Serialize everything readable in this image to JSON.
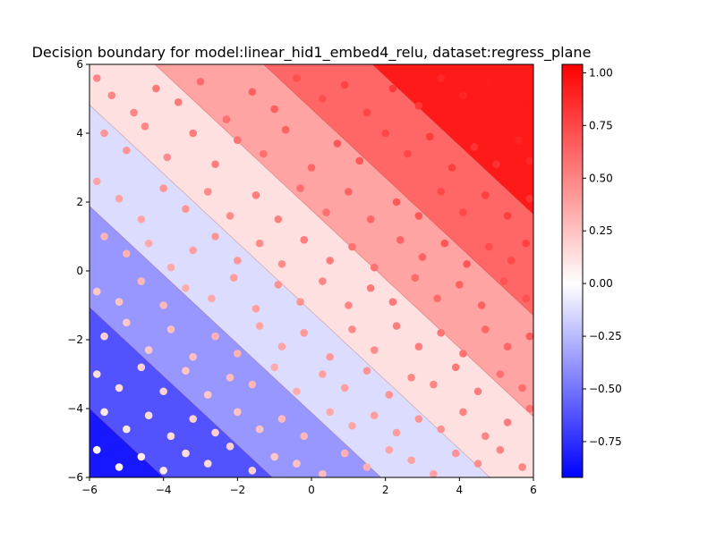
{
  "chart_data": {
    "type": "scatter",
    "title": "Decision boundary for model:linear_hid1_embed4_relu, dataset:regress_plane",
    "xlabel": "",
    "ylabel": "",
    "xlim": [
      -6,
      6
    ],
    "ylim": [
      -6,
      6
    ],
    "x_ticks": [
      -6,
      -4,
      -2,
      0,
      2,
      4,
      6
    ],
    "y_ticks": [
      -6,
      -4,
      -2,
      0,
      2,
      4,
      6
    ],
    "x_tick_labels": [
      "−6",
      "−4",
      "−2",
      "0",
      "2",
      "4",
      "6"
    ],
    "y_tick_labels": [
      "−6",
      "−4",
      "−2",
      "0",
      "2",
      "4",
      "6"
    ],
    "grid": false,
    "colormap": "bwr",
    "colorbar": {
      "vmin": -0.92,
      "vmax": 1.04,
      "ticks": [
        -0.75,
        -0.5,
        -0.25,
        0.0,
        0.25,
        0.5,
        0.75,
        1.0
      ],
      "tick_labels": [
        "−0.75",
        "−0.50",
        "−0.25",
        "0.00",
        "0.25",
        "0.50",
        "0.75",
        "1.00"
      ]
    },
    "contour_levels": [
      -0.75,
      -0.5,
      -0.25,
      0.0,
      0.25,
      0.5,
      0.75
    ],
    "model_surface": {
      "a": 0.085,
      "b": 0.085,
      "c": 0.1
    },
    "sample_value_rule": "(x + y + 12) / 24",
    "points": [
      [
        -5.8,
        5.6
      ],
      [
        -5.4,
        5.1
      ],
      [
        -4.8,
        4.6
      ],
      [
        -4.2,
        5.3
      ],
      [
        -3.6,
        4.9
      ],
      [
        -3.0,
        5.5
      ],
      [
        -2.3,
        4.4
      ],
      [
        -1.6,
        5.2
      ],
      [
        -1.0,
        4.7
      ],
      [
        -0.4,
        5.6
      ],
      [
        0.3,
        5.0
      ],
      [
        0.9,
        5.4
      ],
      [
        1.5,
        4.6
      ],
      [
        2.2,
        5.3
      ],
      [
        2.9,
        4.8
      ],
      [
        3.5,
        5.6
      ],
      [
        4.1,
        5.1
      ],
      [
        4.8,
        5.5
      ],
      [
        5.3,
        5.0
      ],
      [
        5.8,
        4.8
      ],
      [
        -5.6,
        4.0
      ],
      [
        -5.0,
        3.5
      ],
      [
        -4.5,
        4.2
      ],
      [
        -3.9,
        3.3
      ],
      [
        -3.2,
        4.0
      ],
      [
        -2.6,
        3.1
      ],
      [
        -2.0,
        3.8
      ],
      [
        -1.3,
        3.4
      ],
      [
        -0.7,
        4.1
      ],
      [
        0.0,
        3.0
      ],
      [
        0.7,
        3.7
      ],
      [
        1.3,
        3.2
      ],
      [
        2.0,
        4.0
      ],
      [
        2.6,
        3.4
      ],
      [
        3.2,
        3.9
      ],
      [
        3.8,
        3.0
      ],
      [
        4.4,
        3.6
      ],
      [
        5.0,
        3.1
      ],
      [
        5.6,
        3.8
      ],
      [
        5.9,
        3.2
      ],
      [
        -5.8,
        2.6
      ],
      [
        -5.2,
        2.1
      ],
      [
        -4.6,
        1.5
      ],
      [
        -4.0,
        2.4
      ],
      [
        -3.4,
        1.8
      ],
      [
        -2.8,
        2.3
      ],
      [
        -2.2,
        1.6
      ],
      [
        -1.5,
        2.2
      ],
      [
        -0.9,
        1.5
      ],
      [
        -0.3,
        2.4
      ],
      [
        0.4,
        1.7
      ],
      [
        1.0,
        2.3
      ],
      [
        1.6,
        1.5
      ],
      [
        2.3,
        2.0
      ],
      [
        2.9,
        1.6
      ],
      [
        3.5,
        2.3
      ],
      [
        4.1,
        1.7
      ],
      [
        4.7,
        2.2
      ],
      [
        5.3,
        1.6
      ],
      [
        5.9,
        2.1
      ],
      [
        -5.6,
        1.0
      ],
      [
        -5.0,
        0.5
      ],
      [
        -4.4,
        0.8
      ],
      [
        -3.8,
        0.1
      ],
      [
        -3.2,
        0.6
      ],
      [
        -2.6,
        1.0
      ],
      [
        -2.0,
        0.3
      ],
      [
        -1.4,
        0.8
      ],
      [
        -0.8,
        0.2
      ],
      [
        -0.2,
        0.9
      ],
      [
        0.5,
        0.3
      ],
      [
        1.1,
        0.7
      ],
      [
        1.7,
        0.1
      ],
      [
        2.4,
        0.9
      ],
      [
        3.0,
        0.4
      ],
      [
        3.6,
        0.8
      ],
      [
        4.2,
        0.2
      ],
      [
        4.8,
        0.7
      ],
      [
        5.4,
        0.3
      ],
      [
        5.8,
        0.8
      ],
      [
        -5.8,
        -0.6
      ],
      [
        -5.2,
        -0.9
      ],
      [
        -4.6,
        -0.3
      ],
      [
        -4.0,
        -1.0
      ],
      [
        -3.4,
        -0.5
      ],
      [
        -2.7,
        -0.8
      ],
      [
        -2.1,
        -0.2
      ],
      [
        -1.5,
        -1.1
      ],
      [
        -0.9,
        -0.4
      ],
      [
        -0.3,
        -0.9
      ],
      [
        0.3,
        -0.3
      ],
      [
        1.0,
        -1.0
      ],
      [
        1.6,
        -0.5
      ],
      [
        2.2,
        -0.9
      ],
      [
        2.8,
        -0.2
      ],
      [
        3.4,
        -0.8
      ],
      [
        4.0,
        -0.4
      ],
      [
        4.6,
        -1.0
      ],
      [
        5.2,
        -0.3
      ],
      [
        5.8,
        -0.8
      ],
      [
        -5.6,
        -1.9
      ],
      [
        -5.0,
        -1.5
      ],
      [
        -4.4,
        -2.3
      ],
      [
        -3.8,
        -1.7
      ],
      [
        -3.2,
        -2.5
      ],
      [
        -2.6,
        -1.9
      ],
      [
        -2.0,
        -2.4
      ],
      [
        -1.4,
        -1.6
      ],
      [
        -0.8,
        -2.2
      ],
      [
        -0.2,
        -1.8
      ],
      [
        0.5,
        -2.5
      ],
      [
        1.1,
        -1.7
      ],
      [
        1.7,
        -2.3
      ],
      [
        2.3,
        -1.6
      ],
      [
        2.9,
        -2.2
      ],
      [
        3.5,
        -1.8
      ],
      [
        4.1,
        -2.4
      ],
      [
        4.7,
        -1.7
      ],
      [
        5.3,
        -2.2
      ],
      [
        5.9,
        -1.9
      ],
      [
        -5.8,
        -3.0
      ],
      [
        -5.2,
        -3.4
      ],
      [
        -4.6,
        -2.8
      ],
      [
        -4.0,
        -3.5
      ],
      [
        -3.4,
        -2.9
      ],
      [
        -2.8,
        -3.6
      ],
      [
        -2.2,
        -3.1
      ],
      [
        -1.6,
        -3.3
      ],
      [
        -1.0,
        -2.8
      ],
      [
        -0.4,
        -3.5
      ],
      [
        0.3,
        -3.0
      ],
      [
        0.9,
        -3.4
      ],
      [
        1.5,
        -2.9
      ],
      [
        2.1,
        -3.6
      ],
      [
        2.7,
        -3.1
      ],
      [
        3.3,
        -3.3
      ],
      [
        3.9,
        -2.8
      ],
      [
        4.5,
        -3.5
      ],
      [
        5.1,
        -3.0
      ],
      [
        5.7,
        -3.4
      ],
      [
        -5.6,
        -4.1
      ],
      [
        -5.0,
        -4.6
      ],
      [
        -4.4,
        -4.2
      ],
      [
        -3.8,
        -4.8
      ],
      [
        -3.2,
        -4.3
      ],
      [
        -2.6,
        -4.7
      ],
      [
        -2.0,
        -4.1
      ],
      [
        -1.4,
        -4.6
      ],
      [
        -0.8,
        -4.3
      ],
      [
        -0.2,
        -4.8
      ],
      [
        0.5,
        -4.1
      ],
      [
        1.1,
        -4.5
      ],
      [
        1.7,
        -4.2
      ],
      [
        2.3,
        -4.7
      ],
      [
        2.9,
        -4.3
      ],
      [
        3.5,
        -4.6
      ],
      [
        4.1,
        -4.1
      ],
      [
        4.7,
        -4.8
      ],
      [
        5.3,
        -4.4
      ],
      [
        5.9,
        -4.0
      ],
      [
        -5.8,
        -5.2
      ],
      [
        -5.2,
        -5.7
      ],
      [
        -4.6,
        -5.4
      ],
      [
        -4.0,
        -5.8
      ],
      [
        -3.4,
        -5.3
      ],
      [
        -2.8,
        -5.6
      ],
      [
        -2.2,
        -5.1
      ],
      [
        -1.6,
        -5.8
      ],
      [
        -1.0,
        -5.4
      ],
      [
        -0.4,
        -5.6
      ],
      [
        0.3,
        -5.9
      ],
      [
        0.9,
        -5.3
      ],
      [
        1.5,
        -5.7
      ],
      [
        2.1,
        -5.2
      ],
      [
        2.7,
        -5.5
      ],
      [
        3.3,
        -5.9
      ],
      [
        3.9,
        -5.3
      ],
      [
        4.5,
        -5.6
      ],
      [
        5.1,
        -5.2
      ],
      [
        5.7,
        -5.7
      ]
    ]
  }
}
